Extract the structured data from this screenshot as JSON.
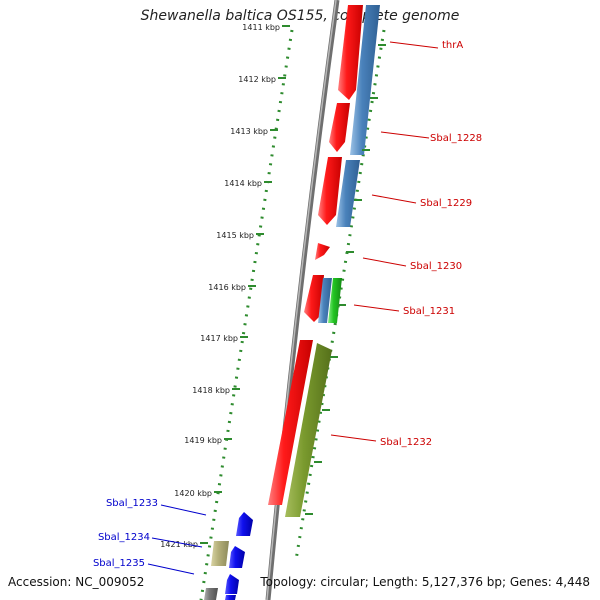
{
  "map": {
    "title": "Shewanella baltica OS155, complete genome",
    "accession_text": "Accession: NC_009052",
    "topology_text": "Topology: circular; Length: 5,127,376 bp; Genes: 4,448",
    "axis_unit": "kbp",
    "tick_labels": [
      "1411 kbp",
      "1412 kbp",
      "1413 kbp",
      "1414 kbp",
      "1415 kbp",
      "1416 kbp",
      "1417 kbp",
      "1418 kbp",
      "1419 kbp",
      "1420 kbp",
      "1421 kbp"
    ],
    "colors": {
      "title": "#222222",
      "backbone": "#888888",
      "ruler": "#2e8b2e",
      "cds_forward": "#ee1111",
      "cds_reverse": "#4a82bb",
      "gene_green": "#22c422",
      "gene_olive": "#7a9a2e",
      "gene_blue": "#1010ee",
      "gene_tan": "#b5b07a",
      "gene_grey": "#777777",
      "label_red": "#cc0000",
      "label_blue": "#0000cc"
    },
    "gene_labels": [
      {
        "text": "thrA",
        "color": "#cc0000"
      },
      {
        "text": "Sbal_1228",
        "color": "#cc0000"
      },
      {
        "text": "Sbal_1229",
        "color": "#cc0000"
      },
      {
        "text": "Sbal_1230",
        "color": "#cc0000"
      },
      {
        "text": "Sbal_1231",
        "color": "#cc0000"
      },
      {
        "text": "Sbal_1232",
        "color": "#cc0000"
      },
      {
        "text": "Sbal_1233",
        "color": "#0000cc"
      },
      {
        "text": "Sbal_1234",
        "color": "#0000cc"
      },
      {
        "text": "Sbal_1235",
        "color": "#0000cc"
      }
    ]
  }
}
